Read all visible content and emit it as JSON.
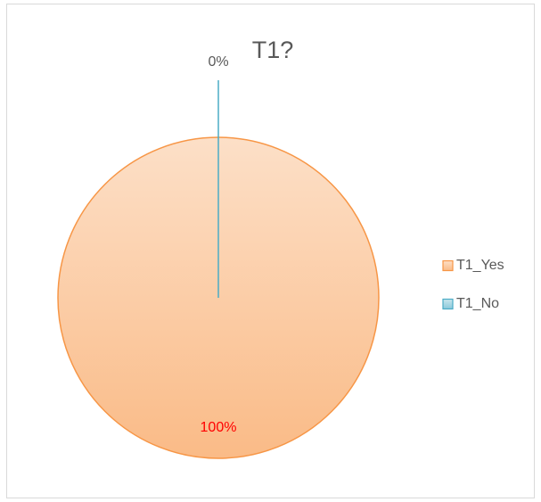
{
  "chart_data": {
    "type": "pie",
    "title": "T1?",
    "categories": [
      "T1_Yes",
      "T1_No"
    ],
    "values": [
      100,
      0
    ],
    "value_labels": [
      "100%",
      "0%"
    ],
    "value_label_colors": [
      "#ff0000",
      "#595959"
    ],
    "colors": [
      "#f79646",
      "#4bacc6"
    ],
    "legend": "right"
  }
}
